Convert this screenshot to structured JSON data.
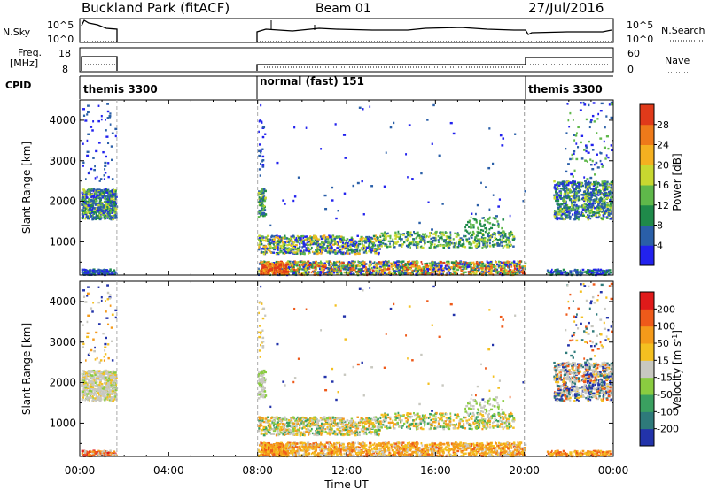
{
  "header": {
    "station": "Buckland Park (fitACF)",
    "beam": "Beam 01",
    "date": "27/Jul/2016"
  },
  "nsky_panel": {
    "label": "N.Sky",
    "y_ticks": [
      "10^5",
      "10^0"
    ],
    "right_label": "N.Search",
    "right_ticks": [
      "10^5",
      "10^0"
    ]
  },
  "freq_panel": {
    "label_top": "Freq.",
    "label_unit": "[MHz]",
    "y_ticks": [
      "18",
      "8"
    ],
    "right_label": "Nave",
    "right_ticks": [
      "60",
      "0"
    ]
  },
  "cpid": {
    "label": "CPID",
    "segments": [
      {
        "text": "themis 3300",
        "start_hr": 0.0,
        "end_hr": 1.67
      },
      {
        "text": "normal (fast) 151",
        "start_hr": 8.0,
        "end_hr": 20.0
      },
      {
        "text": "themis 3300",
        "start_hr": 20.0,
        "end_hr": 24.0
      }
    ]
  },
  "x_axis": {
    "label": "Time UT",
    "ticks": [
      "00:00",
      "04:00",
      "08:00",
      "12:00",
      "16:00",
      "20:00",
      "00:00"
    ],
    "range_hr": [
      0,
      24
    ]
  },
  "chart_data": [
    {
      "type": "heatmap",
      "title": "Power",
      "ylabel": "Slant Range [km]",
      "ylim": [
        180,
        4500
      ],
      "y_ticks": [
        "1000",
        "2000",
        "3000",
        "4000"
      ],
      "colorbar": {
        "label": "Power [dB]",
        "ticks": [
          "4",
          "8",
          "12",
          "16",
          "20",
          "24",
          "28"
        ],
        "colors": [
          "#2222ee",
          "#2a5fa8",
          "#1f8a4a",
          "#5fb84a",
          "#c8d830",
          "#f4b020",
          "#ee7a1a",
          "#e03a1a"
        ],
        "range": [
          0,
          32
        ]
      }
    },
    {
      "type": "heatmap",
      "title": "Velocity",
      "ylabel": "Slant Range [km]",
      "ylim": [
        180,
        4500
      ],
      "y_ticks": [
        "1000",
        "2000",
        "3000",
        "4000"
      ],
      "colorbar": {
        "label": "Velocity [m s",
        "label_sup": "-1",
        "ticks": [
          "200",
          "100",
          "50",
          "15",
          "-15",
          "-50",
          "-100",
          "-200"
        ],
        "colors": [
          "#2233aa",
          "#2e7a7a",
          "#3aa060",
          "#8acc40",
          "#c8c8c0",
          "#f4c020",
          "#f49a1a",
          "#ee5a1a",
          "#e01a1a"
        ]
      }
    }
  ],
  "colors": {
    "dashed_line": "#aaaaaa",
    "gray_scatter": "#c8c8c0"
  }
}
